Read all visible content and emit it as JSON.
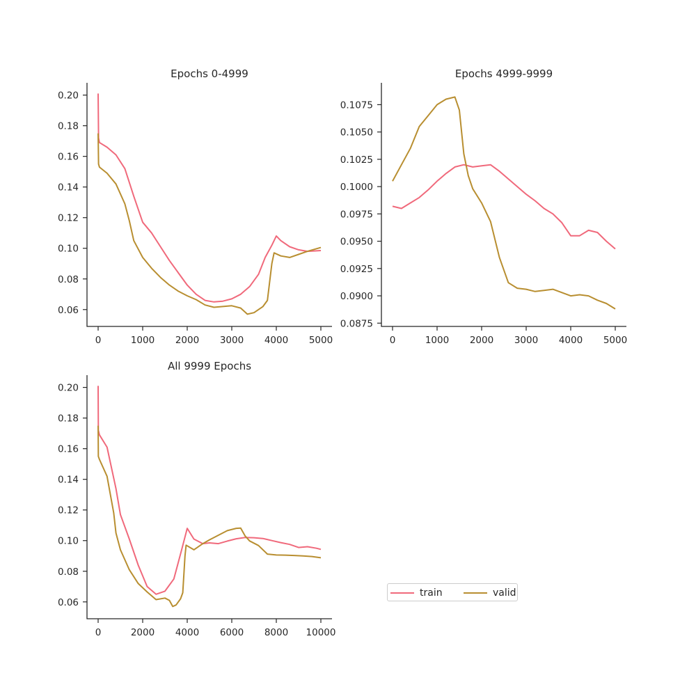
{
  "legend": {
    "placement": "lower-right",
    "entries": [
      {
        "label": "train",
        "color": "#f0697b"
      },
      {
        "label": "valid",
        "color": "#b88e30"
      }
    ]
  },
  "chart_data": [
    {
      "type": "line",
      "title": "Epochs 0-4999",
      "xlabel": "",
      "ylabel": "",
      "xlim": [
        -250,
        5250
      ],
      "ylim": [
        0.049,
        0.208
      ],
      "xticks": [
        0,
        1000,
        2000,
        3000,
        4000,
        5000
      ],
      "xtick_labels": [
        "0",
        "1000",
        "2000",
        "3000",
        "4000",
        "5000"
      ],
      "yticks": [
        0.06,
        0.08,
        0.1,
        0.12,
        0.14,
        0.16,
        0.18,
        0.2
      ],
      "ytick_labels": [
        "0.06",
        "0.08",
        "0.10",
        "0.12",
        "0.14",
        "0.16",
        "0.18",
        "0.20"
      ],
      "grid": false,
      "series": [
        {
          "name": "train",
          "color": "#f0697b",
          "points": [
            [
              0,
              0.201
            ],
            [
              10,
              0.172
            ],
            [
              30,
              0.169
            ],
            [
              200,
              0.166
            ],
            [
              400,
              0.161
            ],
            [
              600,
              0.152
            ],
            [
              800,
              0.134
            ],
            [
              1000,
              0.117
            ],
            [
              1200,
              0.11
            ],
            [
              1400,
              0.101
            ],
            [
              1600,
              0.092
            ],
            [
              1800,
              0.084
            ],
            [
              2000,
              0.076
            ],
            [
              2200,
              0.07
            ],
            [
              2400,
              0.066
            ],
            [
              2600,
              0.065
            ],
            [
              2800,
              0.0655
            ],
            [
              3000,
              0.067
            ],
            [
              3200,
              0.07
            ],
            [
              3400,
              0.075
            ],
            [
              3600,
              0.083
            ],
            [
              3750,
              0.094
            ],
            [
              3900,
              0.102
            ],
            [
              4000,
              0.108
            ],
            [
              4100,
              0.105
            ],
            [
              4300,
              0.101
            ],
            [
              4500,
              0.099
            ],
            [
              4700,
              0.098
            ],
            [
              5000,
              0.0985
            ]
          ]
        },
        {
          "name": "valid",
          "color": "#b88e30",
          "points": [
            [
              0,
              0.175
            ],
            [
              10,
              0.155
            ],
            [
              30,
              0.153
            ],
            [
              200,
              0.149
            ],
            [
              400,
              0.142
            ],
            [
              600,
              0.129
            ],
            [
              700,
              0.118
            ],
            [
              800,
              0.105
            ],
            [
              1000,
              0.094
            ],
            [
              1200,
              0.087
            ],
            [
              1400,
              0.081
            ],
            [
              1600,
              0.076
            ],
            [
              1800,
              0.072
            ],
            [
              2000,
              0.069
            ],
            [
              2200,
              0.0665
            ],
            [
              2400,
              0.063
            ],
            [
              2600,
              0.0615
            ],
            [
              2800,
              0.062
            ],
            [
              3000,
              0.0625
            ],
            [
              3200,
              0.061
            ],
            [
              3350,
              0.057
            ],
            [
              3500,
              0.058
            ],
            [
              3700,
              0.062
            ],
            [
              3800,
              0.066
            ],
            [
              3900,
              0.09
            ],
            [
              3950,
              0.097
            ],
            [
              4100,
              0.095
            ],
            [
              4300,
              0.094
            ],
            [
              4500,
              0.096
            ],
            [
              4700,
              0.098
            ],
            [
              5000,
              0.1005
            ]
          ]
        }
      ]
    },
    {
      "type": "line",
      "title": "Epochs 4999-9999",
      "xlabel": "",
      "ylabel": "",
      "xlim": [
        -250,
        5250
      ],
      "ylim": [
        0.0872,
        0.1095
      ],
      "xticks": [
        0,
        1000,
        2000,
        3000,
        4000,
        5000
      ],
      "xtick_labels": [
        "0",
        "1000",
        "2000",
        "3000",
        "4000",
        "5000"
      ],
      "yticks": [
        0.0875,
        0.09,
        0.0925,
        0.095,
        0.0975,
        0.1,
        0.1025,
        0.105,
        0.1075
      ],
      "ytick_labels": [
        "0.0875",
        "0.0900",
        "0.0925",
        "0.0950",
        "0.0975",
        "0.1000",
        "0.1025",
        "0.1050",
        "0.1075"
      ],
      "grid": false,
      "series": [
        {
          "name": "train",
          "color": "#f0697b",
          "points": [
            [
              0,
              0.0982
            ],
            [
              200,
              0.098
            ],
            [
              400,
              0.0985
            ],
            [
              600,
              0.099
            ],
            [
              800,
              0.0997
            ],
            [
              1000,
              0.1005
            ],
            [
              1200,
              0.1012
            ],
            [
              1400,
              0.1018
            ],
            [
              1600,
              0.102
            ],
            [
              1800,
              0.1018
            ],
            [
              2000,
              0.1019
            ],
            [
              2200,
              0.102
            ],
            [
              2400,
              0.1014
            ],
            [
              2600,
              0.1007
            ],
            [
              2800,
              0.1
            ],
            [
              3000,
              0.0993
            ],
            [
              3200,
              0.0987
            ],
            [
              3400,
              0.098
            ],
            [
              3600,
              0.0975
            ],
            [
              3800,
              0.0967
            ],
            [
              4000,
              0.0955
            ],
            [
              4200,
              0.0955
            ],
            [
              4400,
              0.096
            ],
            [
              4600,
              0.0958
            ],
            [
              4800,
              0.095
            ],
            [
              5000,
              0.0943
            ]
          ]
        },
        {
          "name": "valid",
          "color": "#b88e30",
          "points": [
            [
              0,
              0.1005
            ],
            [
              200,
              0.102
            ],
            [
              400,
              0.1035
            ],
            [
              600,
              0.1055
            ],
            [
              800,
              0.1065
            ],
            [
              1000,
              0.1075
            ],
            [
              1200,
              0.108
            ],
            [
              1400,
              0.1082
            ],
            [
              1500,
              0.107
            ],
            [
              1600,
              0.103
            ],
            [
              1700,
              0.101
            ],
            [
              1800,
              0.0998
            ],
            [
              2000,
              0.0985
            ],
            [
              2200,
              0.0968
            ],
            [
              2400,
              0.0935
            ],
            [
              2600,
              0.0912
            ],
            [
              2800,
              0.0907
            ],
            [
              3000,
              0.0906
            ],
            [
              3200,
              0.0904
            ],
            [
              3400,
              0.0905
            ],
            [
              3600,
              0.0906
            ],
            [
              3800,
              0.0903
            ],
            [
              4000,
              0.09
            ],
            [
              4200,
              0.0901
            ],
            [
              4400,
              0.09
            ],
            [
              4600,
              0.0896
            ],
            [
              4800,
              0.0893
            ],
            [
              5000,
              0.0888
            ]
          ]
        }
      ]
    },
    {
      "type": "line",
      "title": "All 9999 Epochs",
      "xlabel": "",
      "ylabel": "",
      "xlim": [
        -500,
        10500
      ],
      "ylim": [
        0.049,
        0.208
      ],
      "xticks": [
        0,
        2000,
        4000,
        6000,
        8000,
        10000
      ],
      "xtick_labels": [
        "0",
        "2000",
        "4000",
        "6000",
        "8000",
        "10000"
      ],
      "yticks": [
        0.06,
        0.08,
        0.1,
        0.12,
        0.14,
        0.16,
        0.18,
        0.2
      ],
      "ytick_labels": [
        "0.06",
        "0.08",
        "0.10",
        "0.12",
        "0.14",
        "0.16",
        "0.18",
        "0.20"
      ],
      "grid": false,
      "series": [
        {
          "name": "train",
          "color": "#f0697b",
          "points": [
            [
              0,
              0.201
            ],
            [
              10,
              0.172
            ],
            [
              60,
              0.169
            ],
            [
              400,
              0.161
            ],
            [
              800,
              0.134
            ],
            [
              1000,
              0.117
            ],
            [
              1400,
              0.101
            ],
            [
              1800,
              0.084
            ],
            [
              2200,
              0.07
            ],
            [
              2600,
              0.065
            ],
            [
              3000,
              0.067
            ],
            [
              3400,
              0.075
            ],
            [
              3750,
              0.094
            ],
            [
              4000,
              0.108
            ],
            [
              4300,
              0.101
            ],
            [
              4700,
              0.098
            ],
            [
              5000,
              0.0985
            ],
            [
              5400,
              0.098
            ],
            [
              5800,
              0.0997
            ],
            [
              6200,
              0.1012
            ],
            [
              6600,
              0.102
            ],
            [
              7000,
              0.1019
            ],
            [
              7400,
              0.1014
            ],
            [
              7800,
              0.1
            ],
            [
              8200,
              0.0987
            ],
            [
              8600,
              0.0975
            ],
            [
              9000,
              0.0955
            ],
            [
              9400,
              0.096
            ],
            [
              9800,
              0.095
            ],
            [
              10000,
              0.0943
            ]
          ]
        },
        {
          "name": "valid",
          "color": "#b88e30",
          "points": [
            [
              0,
              0.175
            ],
            [
              10,
              0.155
            ],
            [
              60,
              0.153
            ],
            [
              400,
              0.142
            ],
            [
              700,
              0.118
            ],
            [
              800,
              0.105
            ],
            [
              1000,
              0.094
            ],
            [
              1400,
              0.081
            ],
            [
              1800,
              0.072
            ],
            [
              2200,
              0.0665
            ],
            [
              2600,
              0.0615
            ],
            [
              3000,
              0.0625
            ],
            [
              3200,
              0.061
            ],
            [
              3350,
              0.057
            ],
            [
              3500,
              0.058
            ],
            [
              3700,
              0.062
            ],
            [
              3800,
              0.066
            ],
            [
              3900,
              0.09
            ],
            [
              3950,
              0.097
            ],
            [
              4300,
              0.094
            ],
            [
              4700,
              0.098
            ],
            [
              5000,
              0.1005
            ],
            [
              5400,
              0.1035
            ],
            [
              5800,
              0.1065
            ],
            [
              6200,
              0.108
            ],
            [
              6400,
              0.1082
            ],
            [
              6600,
              0.103
            ],
            [
              6800,
              0.0998
            ],
            [
              7200,
              0.0968
            ],
            [
              7600,
              0.0912
            ],
            [
              8000,
              0.0906
            ],
            [
              8400,
              0.0905
            ],
            [
              8800,
              0.0903
            ],
            [
              9200,
              0.09
            ],
            [
              9600,
              0.0896
            ],
            [
              10000,
              0.0888
            ]
          ]
        }
      ]
    }
  ]
}
